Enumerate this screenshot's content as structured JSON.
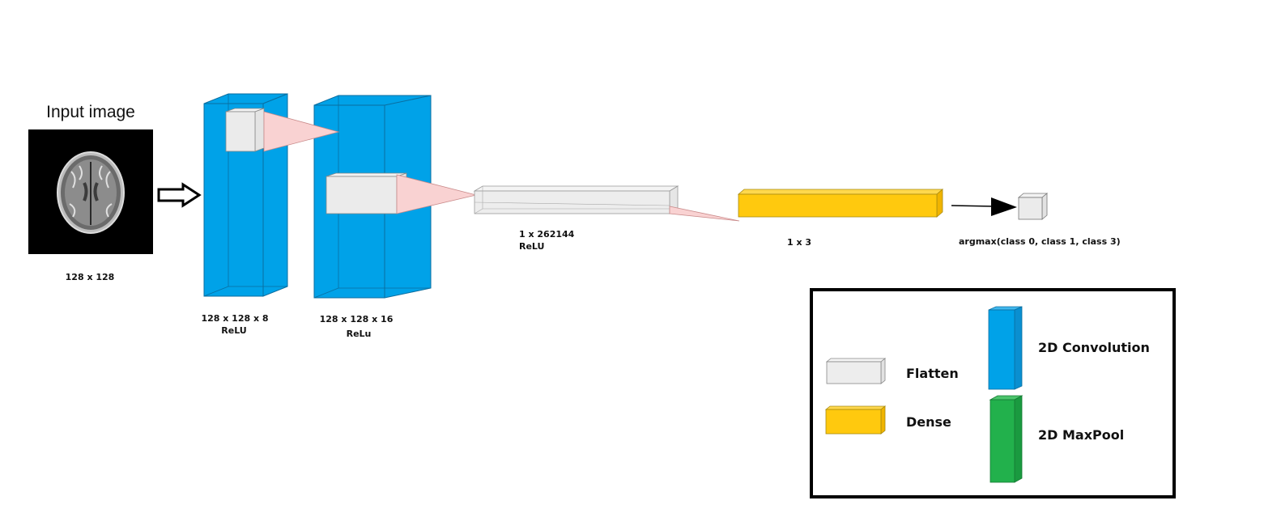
{
  "input": {
    "title": "Input image",
    "size_label": "128 x 128"
  },
  "layers": [
    {
      "id": "conv1",
      "kind": "2D Convolution",
      "dims": "128 x 128 x 8",
      "activation": "ReLU"
    },
    {
      "id": "conv2",
      "kind": "2D Convolution",
      "dims": "128 x 128 x 16",
      "activation": "ReLu"
    },
    {
      "id": "flatten",
      "kind": "Flatten",
      "dims": "1 x 262144",
      "activation": "ReLU"
    },
    {
      "id": "dense",
      "kind": "Dense",
      "dims": "1 x 3"
    }
  ],
  "output": {
    "label": "argmax(class 0, class 1, class 3)"
  },
  "legend": {
    "flatten": "Flatten",
    "dense": "Dense",
    "conv": "2D Convolution",
    "maxpool": "2D MaxPool"
  },
  "colors": {
    "conv": "#00a2e8",
    "flatten": "#ececec",
    "dense": "#ffc90e",
    "maxpool": "#22b14c",
    "receptive_field": "#f9d2d2",
    "input_bg": "#000000"
  }
}
